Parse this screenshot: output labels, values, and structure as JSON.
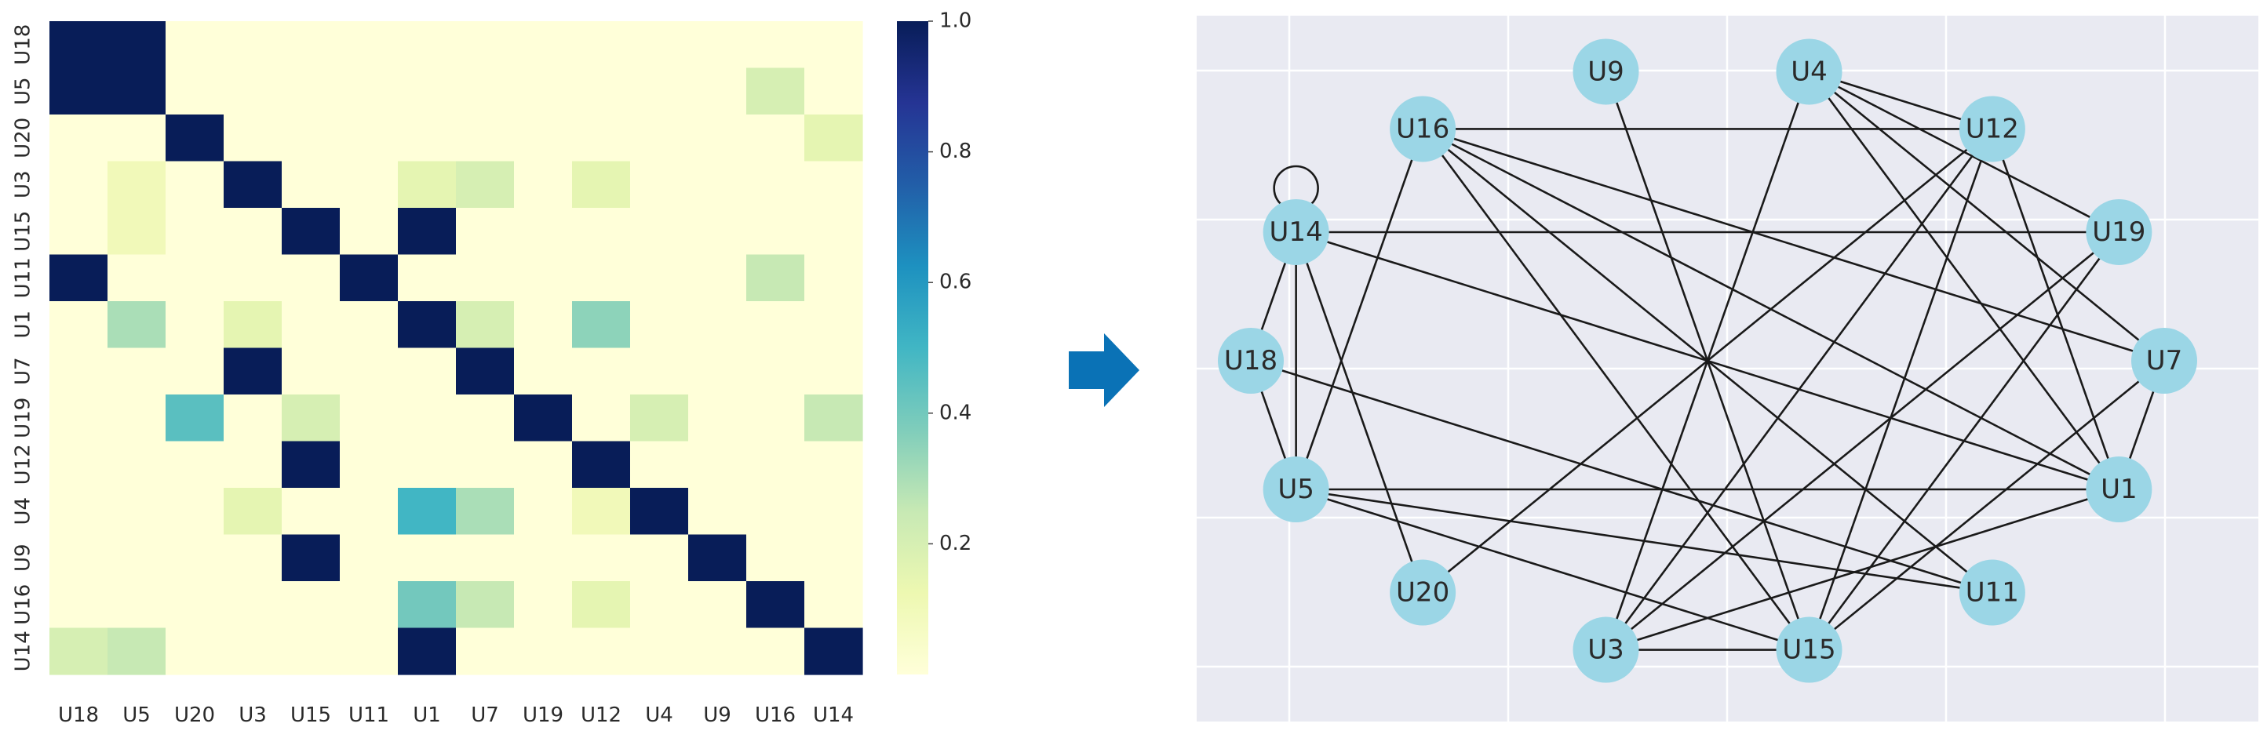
{
  "chart_data": [
    {
      "type": "heatmap",
      "title": "",
      "labels": [
        "U18",
        "U5",
        "U20",
        "U3",
        "U15",
        "U11",
        "U1",
        "U7",
        "U19",
        "U12",
        "U4",
        "U9",
        "U16",
        "U14"
      ],
      "matrix": [
        [
          1,
          1,
          0,
          0,
          0,
          0,
          0,
          0,
          0,
          0,
          0,
          0,
          0,
          0
        ],
        [
          1,
          1,
          0,
          0,
          0,
          0,
          0,
          0,
          0,
          0,
          0,
          0,
          0.2,
          0
        ],
        [
          0,
          0,
          1,
          0,
          0,
          0,
          0,
          0,
          0,
          0,
          0,
          0,
          0,
          0.15
        ],
        [
          0,
          0.1,
          0,
          1,
          0,
          0,
          0.15,
          0.2,
          0,
          0.15,
          0,
          0,
          0,
          0
        ],
        [
          0,
          0.1,
          0,
          0,
          1,
          0,
          1,
          0,
          0,
          0,
          0,
          0,
          0,
          0
        ],
        [
          1,
          0,
          0,
          0,
          0,
          1,
          0,
          0,
          0,
          0,
          0,
          0,
          0.25,
          0
        ],
        [
          0,
          0.3,
          0,
          0.15,
          0,
          0,
          1,
          0.2,
          0,
          0.35,
          0,
          0,
          0,
          0
        ],
        [
          0,
          0,
          0,
          1,
          0,
          0,
          0,
          1,
          0,
          0,
          0,
          0,
          0,
          0
        ],
        [
          0,
          0,
          0.45,
          0,
          0.2,
          0,
          0,
          0,
          1,
          0,
          0.2,
          0,
          0,
          0.25
        ],
        [
          0,
          0,
          0,
          0,
          1,
          0,
          0,
          0,
          0,
          1,
          0,
          0,
          0,
          0
        ],
        [
          0,
          0,
          0,
          0.15,
          0,
          0,
          0.5,
          0.3,
          0,
          0.1,
          1,
          0,
          0,
          0
        ],
        [
          0,
          0,
          0,
          0,
          1,
          0,
          0,
          0,
          0,
          0,
          0,
          1,
          0,
          0
        ],
        [
          0,
          0,
          0,
          0,
          0,
          0,
          0.4,
          0.25,
          0,
          0.15,
          0,
          0,
          1,
          0
        ],
        [
          0.2,
          0.25,
          0,
          0,
          0,
          0,
          1,
          0,
          0,
          0,
          0,
          0,
          0,
          1
        ]
      ],
      "colorbar": {
        "ticks": [
          0.2,
          0.4,
          0.6,
          0.8,
          1.0
        ],
        "tick_labels": [
          "0.2",
          "0.4",
          "0.6",
          "0.8",
          "1.0"
        ],
        "range": [
          0,
          1
        ]
      }
    },
    {
      "type": "network",
      "title": "",
      "nodes": [
        "U9",
        "U4",
        "U12",
        "U19",
        "U7",
        "U1",
        "U11",
        "U15",
        "U3",
        "U20",
        "U5",
        "U18",
        "U14",
        "U16"
      ],
      "edges": [
        [
          "U16",
          "U12"
        ],
        [
          "U16",
          "U5"
        ],
        [
          "U16",
          "U7"
        ],
        [
          "U16",
          "U1"
        ],
        [
          "U16",
          "U11"
        ],
        [
          "U16",
          "U15"
        ],
        [
          "U9",
          "U15"
        ],
        [
          "U4",
          "U12"
        ],
        [
          "U4",
          "U19"
        ],
        [
          "U4",
          "U1"
        ],
        [
          "U4",
          "U7"
        ],
        [
          "U4",
          "U3"
        ],
        [
          "U12",
          "U1"
        ],
        [
          "U12",
          "U3"
        ],
        [
          "U12",
          "U15"
        ],
        [
          "U12",
          "U20"
        ],
        [
          "U14",
          "U14"
        ],
        [
          "U14",
          "U19"
        ],
        [
          "U14",
          "U1"
        ],
        [
          "U14",
          "U18"
        ],
        [
          "U14",
          "U5"
        ],
        [
          "U14",
          "U20"
        ],
        [
          "U19",
          "U3"
        ],
        [
          "U19",
          "U15"
        ],
        [
          "U7",
          "U1"
        ],
        [
          "U7",
          "U15"
        ],
        [
          "U18",
          "U5"
        ],
        [
          "U18",
          "U11"
        ],
        [
          "U5",
          "U1"
        ],
        [
          "U5",
          "U15"
        ],
        [
          "U5",
          "U11"
        ],
        [
          "U1",
          "U3"
        ],
        [
          "U3",
          "U15"
        ]
      ]
    }
  ],
  "colors": {
    "heat_low": "#ffffd9",
    "heat_mid": "#41b6c4",
    "heat_high": "#081d58",
    "arrow": "#0a72b6",
    "plot_bg": "#e9eaf2",
    "grid": "#ffffff",
    "node_fill": "#9bd6e6",
    "edge": "#1a1a1a"
  },
  "arrow_icon": "right-arrow-icon"
}
